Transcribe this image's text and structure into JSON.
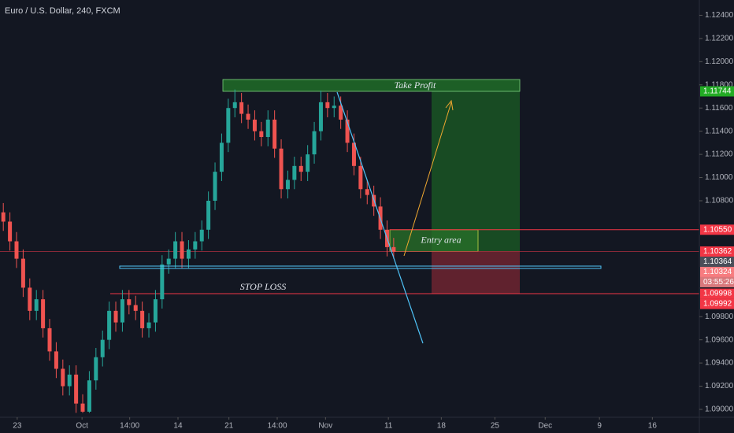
{
  "chart_data": {
    "type": "candlestick",
    "title": "Euro / U.S. Dollar, 240, FXCM",
    "open": [
      1.107,
      1.1062,
      1.1045,
      1.103,
      1.1005,
      1.0985,
      1.0995,
      1.097,
      1.095,
      1.0935,
      1.092,
      1.093,
      1.0905,
      1.0898,
      1.0925,
      1.0945,
      1.096,
      1.0985,
      1.0975,
      1.0995,
      1.099,
      1.0985,
      1.097,
      1.0975,
      1.0995,
      1.1025,
      1.103,
      1.1045,
      1.103,
      1.1038,
      1.1045,
      1.1055,
      1.108,
      1.1105,
      1.113,
      1.116,
      1.1165,
      1.1155,
      1.115,
      1.114,
      1.1135,
      1.115,
      1.1125,
      1.109,
      1.1098,
      1.111,
      1.1105,
      1.112,
      1.114,
      1.1165,
      1.116,
      1.1162,
      1.115,
      1.113,
      1.111,
      1.109,
      1.1085,
      1.1075,
      1.1055,
      1.104
    ],
    "high": [
      1.1078,
      1.107,
      1.1053,
      1.1038,
      1.1013,
      1.1003,
      1.1003,
      1.0978,
      1.0958,
      1.0943,
      1.0938,
      1.0938,
      1.0913,
      1.0933,
      1.0953,
      1.0968,
      1.0993,
      1.0993,
      1.1003,
      1.1003,
      1.0998,
      1.0993,
      1.0983,
      1.1003,
      1.1033,
      1.1038,
      1.1053,
      1.1053,
      1.1046,
      1.1053,
      1.1063,
      1.1088,
      1.1113,
      1.1138,
      1.1168,
      1.1176,
      1.1173,
      1.1163,
      1.1158,
      1.1148,
      1.1158,
      1.1158,
      1.1133,
      1.1106,
      1.1118,
      1.1118,
      1.1128,
      1.1148,
      1.1175,
      1.1173,
      1.117,
      1.117,
      1.1158,
      1.1138,
      1.1118,
      1.1098,
      1.1093,
      1.1083,
      1.1063,
      1.1048
    ],
    "low": [
      1.1054,
      1.1037,
      1.1022,
      1.0997,
      1.0977,
      1.0977,
      1.0962,
      1.0942,
      1.0927,
      1.0912,
      1.0912,
      1.0897,
      1.0897,
      1.0897,
      1.0917,
      1.0937,
      1.0952,
      1.0967,
      1.0967,
      1.0982,
      1.0977,
      1.0962,
      1.0962,
      1.0967,
      1.0987,
      1.1017,
      1.1022,
      1.1022,
      1.1022,
      1.103,
      1.1037,
      1.1047,
      1.1072,
      1.1097,
      1.1122,
      1.1152,
      1.1147,
      1.1142,
      1.1132,
      1.1127,
      1.1127,
      1.1117,
      1.1082,
      1.1082,
      1.109,
      1.1097,
      1.1097,
      1.1112,
      1.1132,
      1.1152,
      1.1152,
      1.1142,
      1.1122,
      1.1102,
      1.1082,
      1.1077,
      1.1067,
      1.1047,
      1.1032,
      1.103
    ],
    "close": [
      1.1062,
      1.1045,
      1.103,
      1.1005,
      1.0985,
      1.0995,
      1.097,
      1.095,
      1.0935,
      1.092,
      1.093,
      1.0905,
      1.0898,
      1.0925,
      1.0945,
      1.096,
      1.0985,
      1.0975,
      1.0995,
      1.099,
      1.0985,
      1.097,
      1.0975,
      1.0995,
      1.1025,
      1.103,
      1.1045,
      1.103,
      1.1038,
      1.1045,
      1.1055,
      1.108,
      1.1105,
      1.113,
      1.116,
      1.1165,
      1.1155,
      1.115,
      1.114,
      1.1135,
      1.115,
      1.1125,
      1.109,
      1.1098,
      1.111,
      1.1105,
      1.112,
      1.114,
      1.1165,
      1.116,
      1.1162,
      1.115,
      1.113,
      1.111,
      1.109,
      1.1085,
      1.1075,
      1.1055,
      1.104,
      1.1036
    ],
    "colors": {
      "up": "#26a69a",
      "down": "#ef5350"
    },
    "ylim": [
      1.08932,
      1.12532
    ],
    "yticks": [
      {
        "value": 1.124,
        "label": "1.12400"
      },
      {
        "value": 1.122,
        "label": "1.12200"
      },
      {
        "value": 1.12,
        "label": "1.12000"
      },
      {
        "value": 1.118,
        "label": "1.11800"
      },
      {
        "value": 1.116,
        "label": "1.11600"
      },
      {
        "value": 1.114,
        "label": "1.11400"
      },
      {
        "value": 1.112,
        "label": "1.11200"
      },
      {
        "value": 1.11,
        "label": "1.11000"
      },
      {
        "value": 1.108,
        "label": "1.10800"
      },
      {
        "value": 1.098,
        "label": "1.09800"
      },
      {
        "value": 1.096,
        "label": "1.09600"
      },
      {
        "value": 1.094,
        "label": "1.09400"
      },
      {
        "value": 1.092,
        "label": "1.09200"
      },
      {
        "value": 1.09,
        "label": "1.09000"
      }
    ],
    "xlim": [
      0,
      105.7
    ],
    "xticks": [
      {
        "value": 2.6,
        "label": "23"
      },
      {
        "value": 12.4,
        "label": "Oct"
      },
      {
        "value": 19.6,
        "label": "14:00"
      },
      {
        "value": 26.9,
        "label": "14"
      },
      {
        "value": 34.6,
        "label": "21"
      },
      {
        "value": 41.9,
        "label": "14:00"
      },
      {
        "value": 49.2,
        "label": "Nov"
      },
      {
        "value": 58.7,
        "label": "11"
      },
      {
        "value": 66.7,
        "label": "18"
      },
      {
        "value": 74.8,
        "label": "25"
      },
      {
        "value": 82.4,
        "label": "Dec"
      },
      {
        "value": 90.6,
        "label": "9"
      },
      {
        "value": 98.6,
        "label": "16"
      }
    ],
    "price_labels": [
      {
        "value": 1.11744,
        "label": "1.11744",
        "color": "#22ab24"
      },
      {
        "value": 1.1055,
        "label": "1.10550",
        "color": "#f23645"
      },
      {
        "value": 1.10362,
        "label": "1.10362",
        "color": "#f23645"
      },
      {
        "value": 1.10364,
        "label": "1.10364",
        "color": "#4a4e59"
      },
      {
        "value": 1.10324,
        "label": "1.10324",
        "color": "#f77c80"
      },
      {
        "value": 1.09998,
        "label": "1.09998",
        "color": "#f23645"
      },
      {
        "value": 1.09992,
        "label": "1.09992",
        "color": "#f23645"
      }
    ],
    "countdown": "03:55:26",
    "annotations": [
      "Take Profit",
      "Entry area",
      "STOP LOSS"
    ]
  }
}
